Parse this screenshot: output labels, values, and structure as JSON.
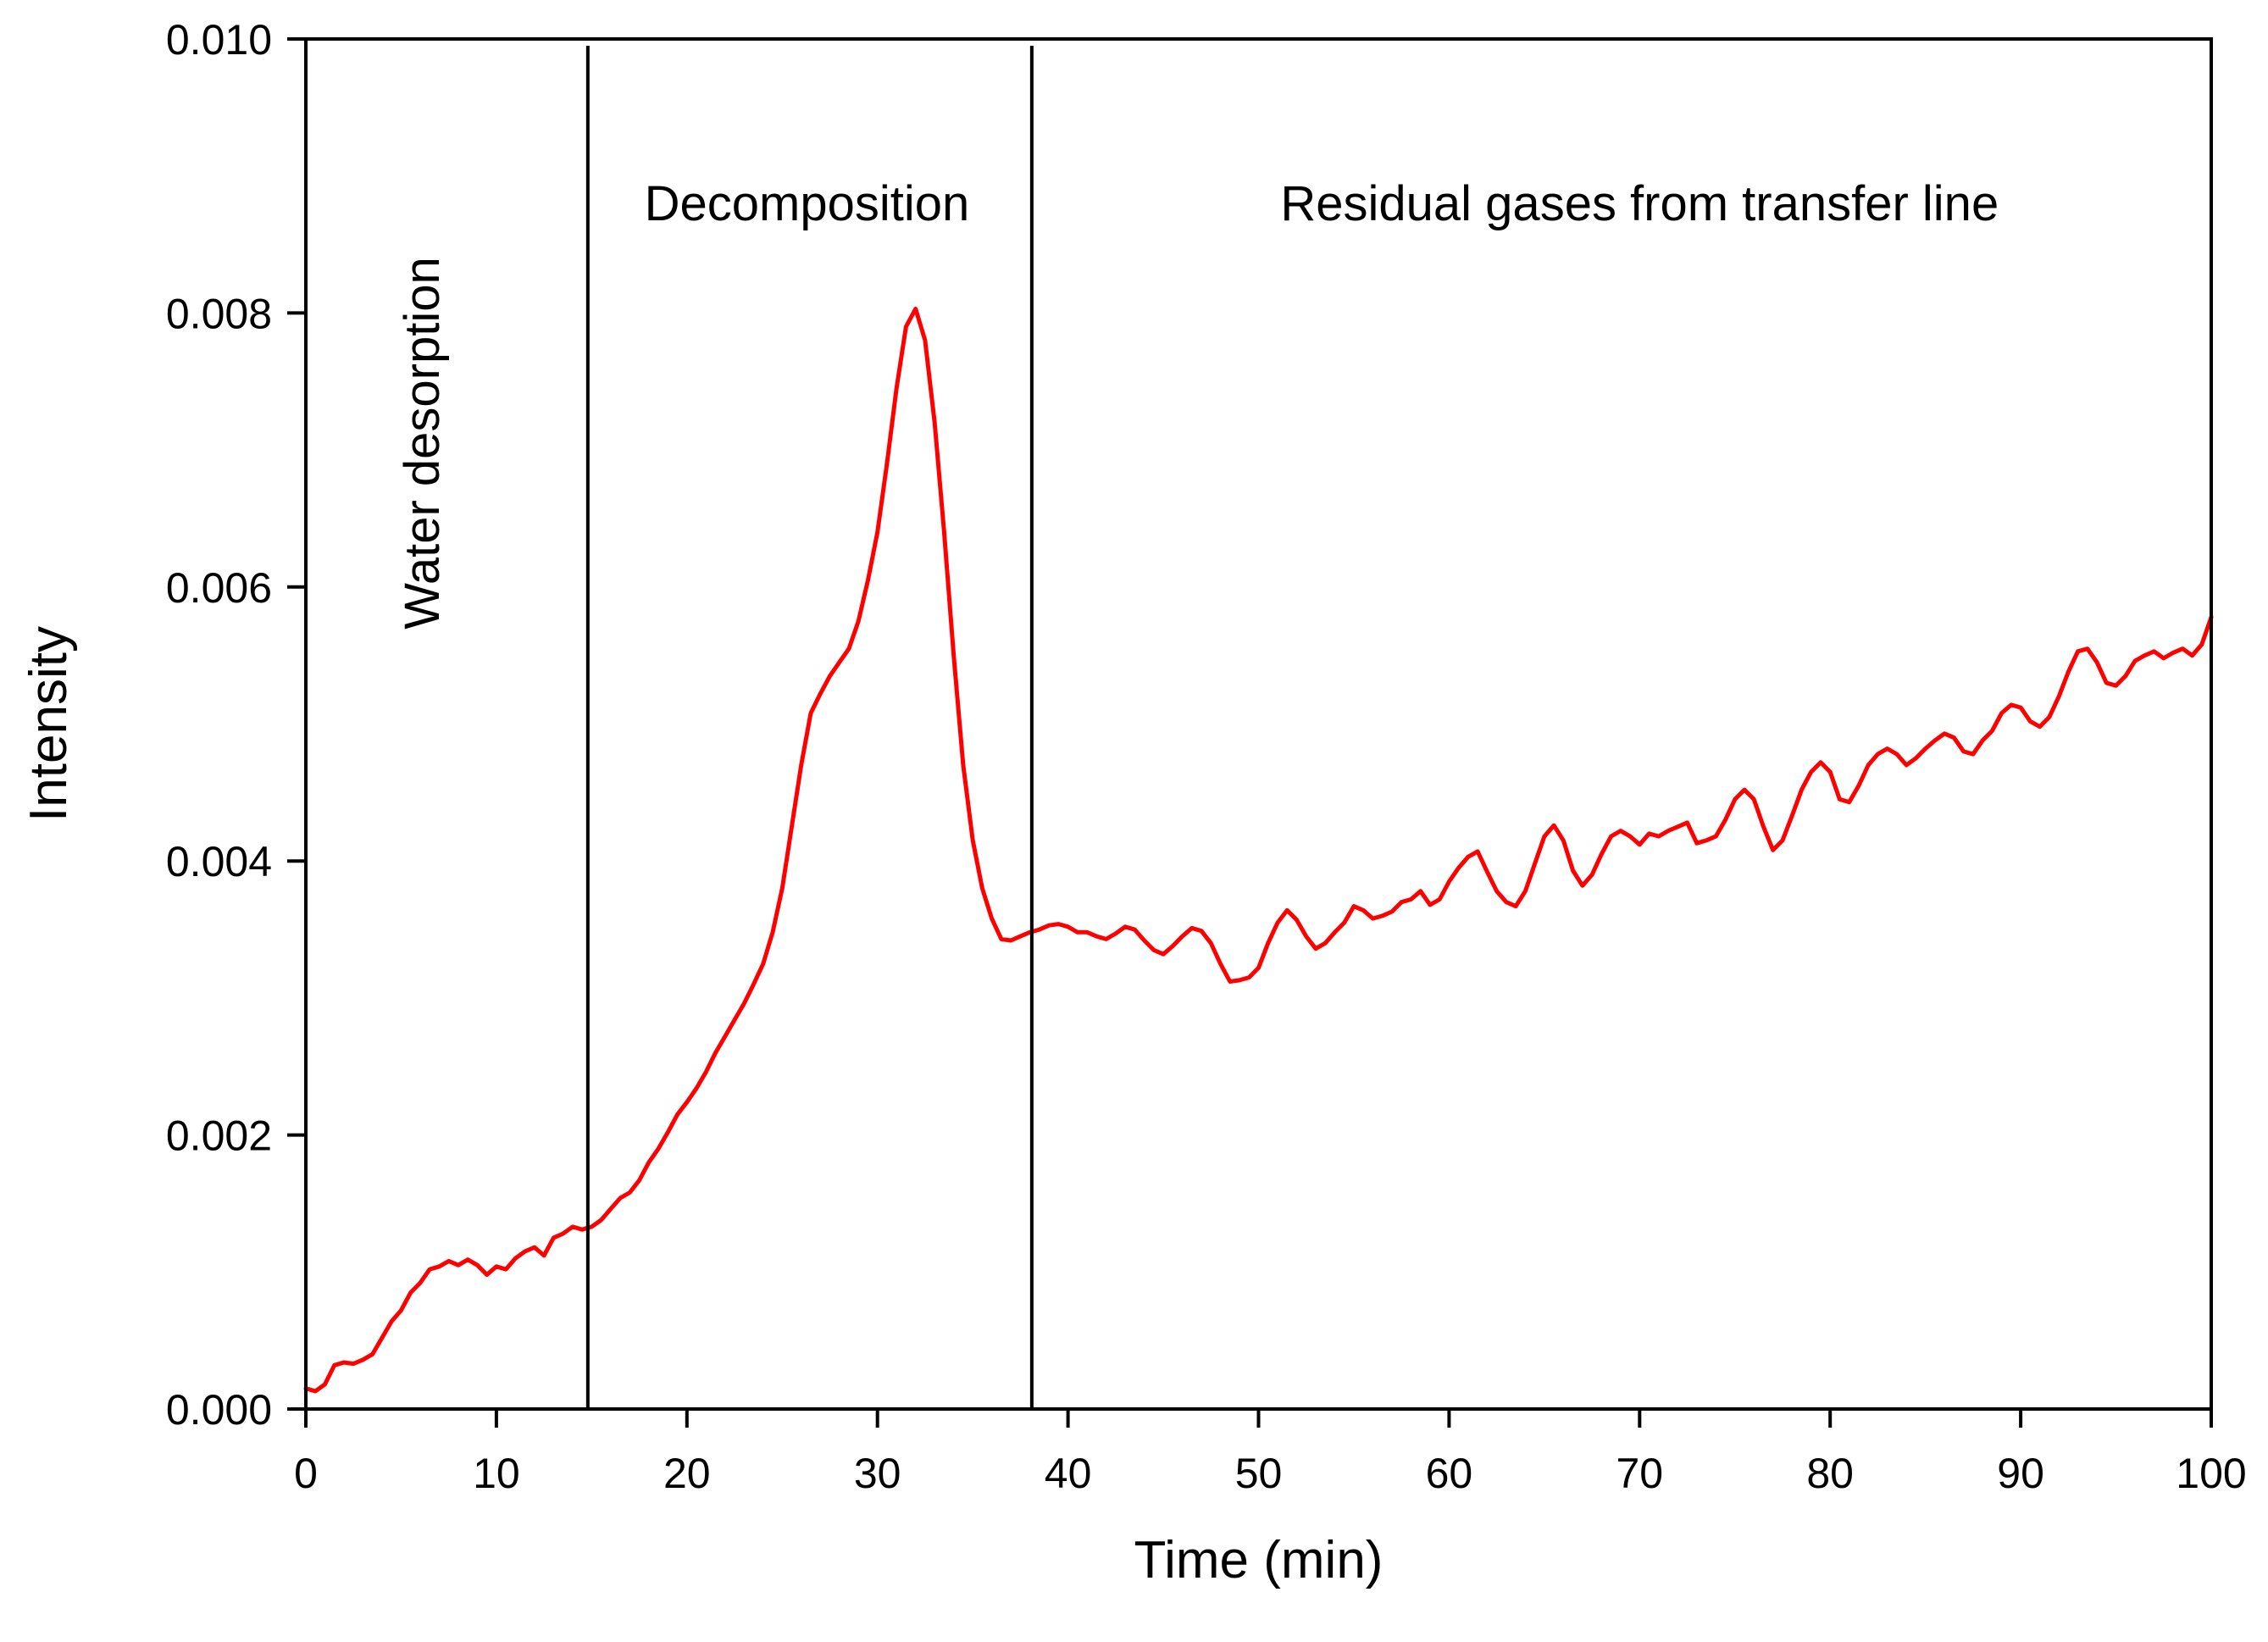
{
  "chart_data": {
    "type": "line",
    "title": "",
    "xlabel": "Time (min)",
    "ylabel": "Intensity",
    "xlim": [
      0,
      100
    ],
    "ylim": [
      0,
      0.01
    ],
    "grid": false,
    "x_ticks": [
      0,
      10,
      20,
      30,
      40,
      50,
      60,
      70,
      80,
      90,
      100
    ],
    "x_tick_labels": [
      "0",
      "10",
      "20",
      "30",
      "40",
      "50",
      "60",
      "70",
      "80",
      "90",
      "100"
    ],
    "y_ticks": [
      0,
      0.002,
      0.004,
      0.006,
      0.008,
      0.01
    ],
    "y_tick_labels": [
      "0.000",
      "0.002",
      "0.004",
      "0.006",
      "0.008",
      "0.010"
    ],
    "boundaries": [
      {
        "name": "water-decomposition-boundary",
        "x": 14.8
      },
      {
        "name": "decomposition-residual-boundary",
        "x": 38.1
      }
    ],
    "regions": [
      {
        "name": "water-desorption",
        "label": "Water desorption",
        "x": 6.0,
        "y": 0.00705,
        "rotated": true
      },
      {
        "name": "decomposition",
        "label": "Decomposition",
        "x": 26.3,
        "y": 0.0088,
        "rotated": false
      },
      {
        "name": "residual-gases",
        "label": "Residual gases from transfer line",
        "x": 70.0,
        "y": 0.0088,
        "rotated": false
      }
    ],
    "series": [
      {
        "name": "intensity",
        "color": "#ff0000",
        "points": [
          [
            0.0,
            0.00015
          ],
          [
            0.5,
            0.00013
          ],
          [
            1.0,
            0.00018
          ],
          [
            1.5,
            0.00032
          ],
          [
            2.0,
            0.00034
          ],
          [
            2.5,
            0.00033
          ],
          [
            3.0,
            0.00036
          ],
          [
            3.5,
            0.0004
          ],
          [
            4.0,
            0.00052
          ],
          [
            4.5,
            0.00064
          ],
          [
            5.0,
            0.00072
          ],
          [
            5.5,
            0.00085
          ],
          [
            6.0,
            0.00092
          ],
          [
            6.5,
            0.00102
          ],
          [
            7.0,
            0.00104
          ],
          [
            7.5,
            0.00108
          ],
          [
            8.0,
            0.00105
          ],
          [
            8.5,
            0.00109
          ],
          [
            9.0,
            0.00105
          ],
          [
            9.5,
            0.00098
          ],
          [
            10.0,
            0.00104
          ],
          [
            10.5,
            0.00102
          ],
          [
            11.0,
            0.0011
          ],
          [
            11.5,
            0.00115
          ],
          [
            12.0,
            0.00118
          ],
          [
            12.5,
            0.00112
          ],
          [
            13.0,
            0.00125
          ],
          [
            13.5,
            0.00128
          ],
          [
            14.0,
            0.00133
          ],
          [
            14.5,
            0.00131
          ],
          [
            15.0,
            0.00133
          ],
          [
            15.5,
            0.00138
          ],
          [
            16.0,
            0.00146
          ],
          [
            16.5,
            0.00154
          ],
          [
            17.0,
            0.00158
          ],
          [
            17.5,
            0.00167
          ],
          [
            18.0,
            0.0018
          ],
          [
            18.5,
            0.0019
          ],
          [
            19.0,
            0.00202
          ],
          [
            19.5,
            0.00215
          ],
          [
            20.0,
            0.00224
          ],
          [
            20.5,
            0.00234
          ],
          [
            21.0,
            0.00246
          ],
          [
            21.5,
            0.0026
          ],
          [
            22.0,
            0.00272
          ],
          [
            22.5,
            0.00284
          ],
          [
            23.0,
            0.00296
          ],
          [
            23.5,
            0.0031
          ],
          [
            24.0,
            0.00325
          ],
          [
            24.5,
            0.00348
          ],
          [
            25.0,
            0.0038
          ],
          [
            25.5,
            0.00425
          ],
          [
            26.0,
            0.0047
          ],
          [
            26.5,
            0.00508
          ],
          [
            27.0,
            0.00522
          ],
          [
            27.5,
            0.00535
          ],
          [
            28.0,
            0.00545
          ],
          [
            28.5,
            0.00555
          ],
          [
            29.0,
            0.00575
          ],
          [
            29.5,
            0.00605
          ],
          [
            30.0,
            0.0064
          ],
          [
            30.5,
            0.0069
          ],
          [
            31.0,
            0.00745
          ],
          [
            31.5,
            0.0079
          ],
          [
            32.0,
            0.00803
          ],
          [
            32.5,
            0.0078
          ],
          [
            33.0,
            0.0072
          ],
          [
            33.5,
            0.0064
          ],
          [
            34.0,
            0.0055
          ],
          [
            34.5,
            0.0047
          ],
          [
            35.0,
            0.00415
          ],
          [
            35.5,
            0.0038
          ],
          [
            36.0,
            0.00358
          ],
          [
            36.5,
            0.00343
          ],
          [
            37.0,
            0.00342
          ],
          [
            37.5,
            0.00345
          ],
          [
            38.0,
            0.00348
          ],
          [
            38.5,
            0.0035
          ],
          [
            39.0,
            0.00353
          ],
          [
            39.5,
            0.00354
          ],
          [
            40.0,
            0.00352
          ],
          [
            40.5,
            0.00348
          ],
          [
            41.0,
            0.00348
          ],
          [
            41.5,
            0.00345
          ],
          [
            42.0,
            0.00343
          ],
          [
            42.5,
            0.00347
          ],
          [
            43.0,
            0.00352
          ],
          [
            43.5,
            0.0035
          ],
          [
            44.0,
            0.00342
          ],
          [
            44.5,
            0.00335
          ],
          [
            45.0,
            0.00332
          ],
          [
            45.5,
            0.00338
          ],
          [
            46.0,
            0.00345
          ],
          [
            46.5,
            0.00351
          ],
          [
            47.0,
            0.00349
          ],
          [
            47.5,
            0.0034
          ],
          [
            48.0,
            0.00325
          ],
          [
            48.5,
            0.00312
          ],
          [
            49.0,
            0.00313
          ],
          [
            49.5,
            0.00315
          ],
          [
            50.0,
            0.00322
          ],
          [
            50.5,
            0.0034
          ],
          [
            51.0,
            0.00355
          ],
          [
            51.5,
            0.00364
          ],
          [
            52.0,
            0.00357
          ],
          [
            52.5,
            0.00345
          ],
          [
            53.0,
            0.00336
          ],
          [
            53.5,
            0.0034
          ],
          [
            54.0,
            0.00348
          ],
          [
            54.5,
            0.00355
          ],
          [
            55.0,
            0.00367
          ],
          [
            55.5,
            0.00364
          ],
          [
            56.0,
            0.00358
          ],
          [
            56.5,
            0.0036
          ],
          [
            57.0,
            0.00363
          ],
          [
            57.5,
            0.0037
          ],
          [
            58.0,
            0.00372
          ],
          [
            58.5,
            0.00378
          ],
          [
            59.0,
            0.00368
          ],
          [
            59.5,
            0.00372
          ],
          [
            60.0,
            0.00385
          ],
          [
            60.5,
            0.00395
          ],
          [
            61.0,
            0.00403
          ],
          [
            61.5,
            0.00407
          ],
          [
            62.0,
            0.00392
          ],
          [
            62.5,
            0.00378
          ],
          [
            63.0,
            0.0037
          ],
          [
            63.5,
            0.00367
          ],
          [
            64.0,
            0.00378
          ],
          [
            64.5,
            0.00398
          ],
          [
            65.0,
            0.00418
          ],
          [
            65.5,
            0.00426
          ],
          [
            66.0,
            0.00415
          ],
          [
            66.5,
            0.00393
          ],
          [
            67.0,
            0.00382
          ],
          [
            67.5,
            0.0039
          ],
          [
            68.0,
            0.00405
          ],
          [
            68.5,
            0.00418
          ],
          [
            69.0,
            0.00422
          ],
          [
            69.5,
            0.00418
          ],
          [
            70.0,
            0.00412
          ],
          [
            70.5,
            0.0042
          ],
          [
            71.0,
            0.00418
          ],
          [
            71.5,
            0.00422
          ],
          [
            72.0,
            0.00425
          ],
          [
            72.5,
            0.00428
          ],
          [
            73.0,
            0.00413
          ],
          [
            73.5,
            0.00415
          ],
          [
            74.0,
            0.00418
          ],
          [
            74.5,
            0.0043
          ],
          [
            75.0,
            0.00445
          ],
          [
            75.5,
            0.00452
          ],
          [
            76.0,
            0.00445
          ],
          [
            76.5,
            0.00425
          ],
          [
            77.0,
            0.00408
          ],
          [
            77.5,
            0.00415
          ],
          [
            78.0,
            0.00433
          ],
          [
            78.5,
            0.00452
          ],
          [
            79.0,
            0.00465
          ],
          [
            79.5,
            0.00472
          ],
          [
            80.0,
            0.00465
          ],
          [
            80.5,
            0.00445
          ],
          [
            81.0,
            0.00443
          ],
          [
            81.5,
            0.00455
          ],
          [
            82.0,
            0.0047
          ],
          [
            82.5,
            0.00478
          ],
          [
            83.0,
            0.00482
          ],
          [
            83.5,
            0.00478
          ],
          [
            84.0,
            0.0047
          ],
          [
            84.5,
            0.00475
          ],
          [
            85.0,
            0.00482
          ],
          [
            85.5,
            0.00488
          ],
          [
            86.0,
            0.00493
          ],
          [
            86.5,
            0.0049
          ],
          [
            87.0,
            0.0048
          ],
          [
            87.5,
            0.00478
          ],
          [
            88.0,
            0.00488
          ],
          [
            88.5,
            0.00495
          ],
          [
            89.0,
            0.00508
          ],
          [
            89.5,
            0.00514
          ],
          [
            90.0,
            0.00512
          ],
          [
            90.5,
            0.00502
          ],
          [
            91.0,
            0.00498
          ],
          [
            91.5,
            0.00505
          ],
          [
            92.0,
            0.0052
          ],
          [
            92.5,
            0.00538
          ],
          [
            93.0,
            0.00553
          ],
          [
            93.5,
            0.00555
          ],
          [
            94.0,
            0.00545
          ],
          [
            94.5,
            0.0053
          ],
          [
            95.0,
            0.00528
          ],
          [
            95.5,
            0.00535
          ],
          [
            96.0,
            0.00546
          ],
          [
            96.5,
            0.0055
          ],
          [
            97.0,
            0.00553
          ],
          [
            97.5,
            0.00548
          ],
          [
            98.0,
            0.00552
          ],
          [
            98.5,
            0.00555
          ],
          [
            99.0,
            0.0055
          ],
          [
            99.5,
            0.00558
          ],
          [
            100.0,
            0.00578
          ]
        ]
      }
    ]
  }
}
